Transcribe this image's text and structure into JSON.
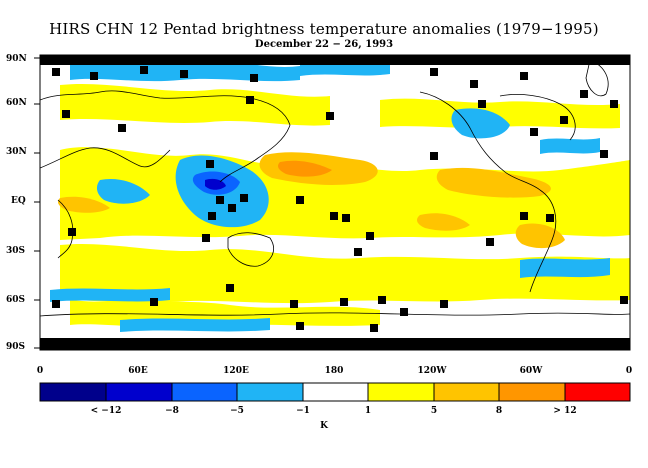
{
  "title": "HIRS CHN 12 Pentad brightness temperature anomalies (1979−1995)",
  "subtitle": "December 22 − 26, 1993",
  "lat_labels": [
    "90N",
    "60N",
    "30N",
    "EQ",
    "30S",
    "60S",
    "90S"
  ],
  "lon_labels": [
    "0",
    "60E",
    "120E",
    "180",
    "120W",
    "60W",
    "0"
  ],
  "colorbar": {
    "colors": [
      "#00008b",
      "#0000cd",
      "#0a64ff",
      "#20b4f5",
      "#ffffff",
      "#ffff00",
      "#ffc400",
      "#ff9600",
      "#ff0000"
    ],
    "labels": [
      "< −12",
      "−8",
      "−5",
      "−1",
      "1",
      "5",
      "8",
      "> 12"
    ],
    "unit": "K"
  },
  "legend_colors": {
    "missing": "#000000",
    "coastline": "#000000"
  }
}
